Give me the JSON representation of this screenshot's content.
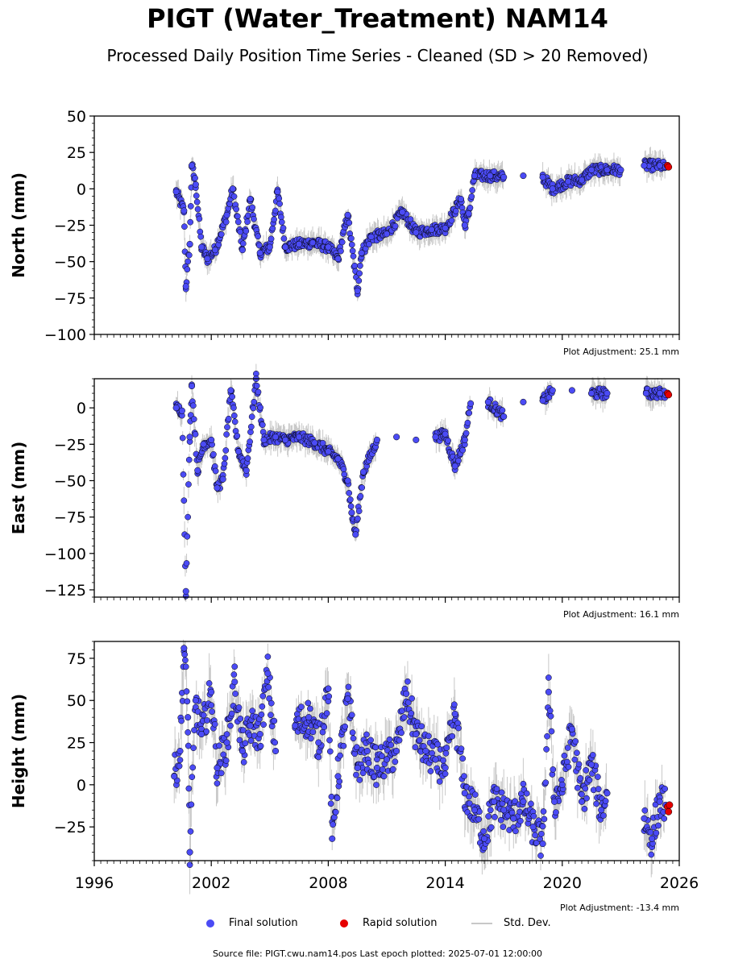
{
  "title": "PIGT (Water_Treatment) NAM14",
  "subtitle": "Processed Daily Position Time Series - Cleaned (SD > 20 Removed)",
  "legend": {
    "final": "Final solution",
    "rapid": "Rapid solution",
    "std": "Std. Dev."
  },
  "source_line": "Source file: PIGT.cwu.nam14.pos  Last epoch plotted: 2025-07-01 12:00:00",
  "colors": {
    "final": "#4b4bf5",
    "rapid": "#e60000",
    "std": "#c8c8c8",
    "marker_edge": "#000000"
  },
  "chart_data": [
    {
      "type": "scatter",
      "component": "north",
      "ylabel": "North (mm)",
      "ylim": [
        -100,
        50
      ],
      "yticks": [
        -100,
        -75,
        -50,
        -25,
        0,
        25,
        50
      ],
      "xlim": [
        1996,
        2026
      ],
      "adjustment": "Plot Adjustment: 25.1 mm",
      "final_series": [
        [
          2000.2,
          -2
        ],
        [
          2000.6,
          -15
        ],
        [
          2000.7,
          -67
        ],
        [
          2000.9,
          -38
        ],
        [
          2001.0,
          16
        ],
        [
          2001.2,
          3
        ],
        [
          2001.5,
          -40
        ],
        [
          2001.8,
          -48
        ],
        [
          2002.2,
          -42
        ],
        [
          2002.8,
          -18
        ],
        [
          2003.1,
          0
        ],
        [
          2003.6,
          -42
        ],
        [
          2004.0,
          -7
        ],
        [
          2004.5,
          -44
        ],
        [
          2005.0,
          -40
        ],
        [
          2005.4,
          -2
        ],
        [
          2005.8,
          -40
        ],
        [
          2006.5,
          -38
        ],
        [
          2007.2,
          -37
        ],
        [
          2008.0,
          -40
        ],
        [
          2008.5,
          -48
        ],
        [
          2009.0,
          -18
        ],
        [
          2009.5,
          -70
        ],
        [
          2009.7,
          -44
        ],
        [
          2010.2,
          -33
        ],
        [
          2011.0,
          -31
        ],
        [
          2011.8,
          -16
        ],
        [
          2012.5,
          -30
        ],
        [
          2013.3,
          -28
        ],
        [
          2014.0,
          -27
        ],
        [
          2014.8,
          -7
        ],
        [
          2015.0,
          -25
        ],
        [
          2015.2,
          -17
        ],
        [
          2015.5,
          9
        ],
        [
          2016.3,
          9
        ],
        [
          2017.0,
          8
        ],
        [
          2018.0,
          9
        ],
        [
          2019.0,
          8
        ],
        [
          2019.5,
          0
        ],
        [
          2020.3,
          5
        ],
        [
          2021.0,
          6
        ],
        [
          2021.5,
          13
        ],
        [
          2022.3,
          13
        ],
        [
          2023.0,
          13
        ],
        [
          2024.2,
          16
        ],
        [
          2025.0,
          16
        ],
        [
          2025.3,
          15
        ]
      ],
      "rapid_series": [
        [
          2025.4,
          16
        ],
        [
          2025.45,
          15
        ]
      ]
    },
    {
      "type": "scatter",
      "component": "east",
      "ylabel": "East (mm)",
      "ylim": [
        -130,
        20
      ],
      "yticks": [
        -125,
        -100,
        -75,
        -50,
        -25,
        0
      ],
      "xlim": [
        1996,
        2026
      ],
      "adjustment": "Plot Adjustment: 16.1 mm",
      "final_series": [
        [
          2000.2,
          0
        ],
        [
          2000.5,
          -2
        ],
        [
          2000.7,
          -126
        ],
        [
          2000.9,
          -20
        ],
        [
          2001.0,
          15
        ],
        [
          2001.3,
          -43
        ],
        [
          2001.6,
          -25
        ],
        [
          2002.0,
          -22
        ],
        [
          2002.3,
          -55
        ],
        [
          2002.6,
          -49
        ],
        [
          2003.0,
          12
        ],
        [
          2003.4,
          -30
        ],
        [
          2003.8,
          -43
        ],
        [
          2004.3,
          20
        ],
        [
          2004.7,
          -22
        ],
        [
          2005.3,
          -20
        ],
        [
          2005.8,
          -22
        ],
        [
          2006.5,
          -20
        ],
        [
          2007.3,
          -24
        ],
        [
          2008.0,
          -30
        ],
        [
          2008.5,
          -35
        ],
        [
          2009.0,
          -50
        ],
        [
          2009.2,
          -72
        ],
        [
          2009.4,
          -87
        ],
        [
          2009.8,
          -44
        ],
        [
          2010.5,
          -22
        ],
        [
          2011.5,
          -20
        ],
        [
          2012.5,
          -22
        ],
        [
          2013.5,
          -20
        ],
        [
          2014.0,
          -18
        ],
        [
          2014.5,
          -40
        ],
        [
          2015.0,
          -22
        ],
        [
          2015.3,
          3
        ],
        [
          2016.2,
          4
        ],
        [
          2017.0,
          -6
        ],
        [
          2018.0,
          4
        ],
        [
          2019.0,
          5
        ],
        [
          2019.5,
          12
        ],
        [
          2020.5,
          12
        ],
        [
          2021.5,
          10
        ],
        [
          2022.3,
          10
        ],
        [
          2024.3,
          10
        ],
        [
          2025.0,
          10
        ],
        [
          2025.3,
          9
        ]
      ],
      "rapid_series": [
        [
          2025.4,
          10
        ],
        [
          2025.45,
          9
        ]
      ]
    },
    {
      "type": "scatter",
      "component": "height",
      "ylabel": "Height (mm)",
      "ylim": [
        -45,
        85
      ],
      "yticks": [
        -25,
        0,
        25,
        50,
        75
      ],
      "xlim": [
        1996,
        2026
      ],
      "adjustment": "Plot Adjustment: -13.4 mm",
      "final_series": [
        [
          2000.1,
          5
        ],
        [
          2000.4,
          20
        ],
        [
          2000.6,
          81
        ],
        [
          2000.8,
          40
        ],
        [
          2000.9,
          -40
        ],
        [
          2001.2,
          50
        ],
        [
          2001.5,
          30
        ],
        [
          2002.0,
          55
        ],
        [
          2002.3,
          10
        ],
        [
          2002.8,
          25
        ],
        [
          2003.2,
          61
        ],
        [
          2003.6,
          20
        ],
        [
          2004.0,
          35
        ],
        [
          2004.5,
          30
        ],
        [
          2004.9,
          66
        ],
        [
          2005.3,
          20
        ],
        [
          2006.3,
          35
        ],
        [
          2007.0,
          40
        ],
        [
          2007.5,
          25
        ],
        [
          2008.0,
          57
        ],
        [
          2008.2,
          -32
        ],
        [
          2008.5,
          5
        ],
        [
          2009.0,
          51
        ],
        [
          2009.5,
          10
        ],
        [
          2010.0,
          20
        ],
        [
          2010.5,
          10
        ],
        [
          2011.0,
          15
        ],
        [
          2011.5,
          20
        ],
        [
          2012.0,
          54
        ],
        [
          2012.5,
          30
        ],
        [
          2013.0,
          20
        ],
        [
          2013.5,
          15
        ],
        [
          2014.0,
          10
        ],
        [
          2014.5,
          42
        ],
        [
          2015.0,
          -5
        ],
        [
          2015.5,
          -15
        ],
        [
          2016.0,
          -32
        ],
        [
          2016.5,
          -10
        ],
        [
          2017.0,
          -15
        ],
        [
          2017.5,
          -20
        ],
        [
          2018.0,
          -10
        ],
        [
          2018.5,
          -25
        ],
        [
          2019.0,
          -35
        ],
        [
          2019.3,
          55
        ],
        [
          2019.6,
          -10
        ],
        [
          2020.0,
          0
        ],
        [
          2020.5,
          33
        ],
        [
          2021.0,
          -10
        ],
        [
          2021.5,
          12
        ],
        [
          2022.0,
          -15
        ],
        [
          2022.3,
          -5
        ],
        [
          2024.2,
          -20
        ],
        [
          2024.6,
          -32
        ],
        [
          2025.0,
          -10
        ],
        [
          2025.3,
          -12
        ]
      ],
      "rapid_series": [
        [
          2025.4,
          -13
        ],
        [
          2025.45,
          -16
        ],
        [
          2025.5,
          -12
        ]
      ]
    }
  ],
  "xaxis": {
    "tick_labels": [
      "1996",
      "2002",
      "2008",
      "2014",
      "2020",
      "2026"
    ],
    "tick_values": [
      1996,
      2002,
      2008,
      2014,
      2020,
      2026
    ]
  }
}
